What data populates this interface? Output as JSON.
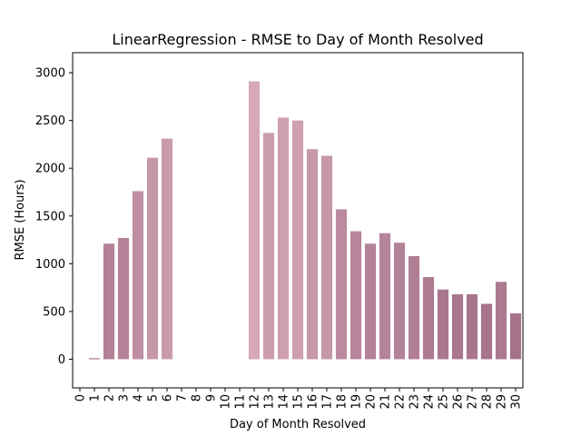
{
  "chart_data": {
    "type": "bar",
    "title": "LinearRegression - RMSE to Day of Month Resolved",
    "xlabel": "Day of Month Resolved",
    "ylabel": "RMSE (Hours)",
    "categories": [
      "0",
      "1",
      "2",
      "3",
      "4",
      "5",
      "6",
      "7",
      "8",
      "9",
      "10",
      "11",
      "12",
      "13",
      "14",
      "15",
      "16",
      "17",
      "18",
      "19",
      "20",
      "21",
      "22",
      "23",
      "24",
      "25",
      "26",
      "27",
      "28",
      "29",
      "30"
    ],
    "values": [
      null,
      10,
      1210,
      1270,
      1760,
      2110,
      2310,
      null,
      null,
      null,
      null,
      null,
      2910,
      2370,
      2530,
      2500,
      2200,
      2130,
      1570,
      1340,
      1210,
      1320,
      1220,
      1080,
      860,
      730,
      680,
      680,
      580,
      810,
      480
    ],
    "ylim": [
      -300,
      3210
    ],
    "yticks": [
      0,
      500,
      1000,
      1500,
      2000,
      2500,
      3000
    ],
    "grid": false,
    "colors": {
      "low": "#9c6781",
      "high": "#d6a8b8",
      "axis": "#000000"
    }
  }
}
